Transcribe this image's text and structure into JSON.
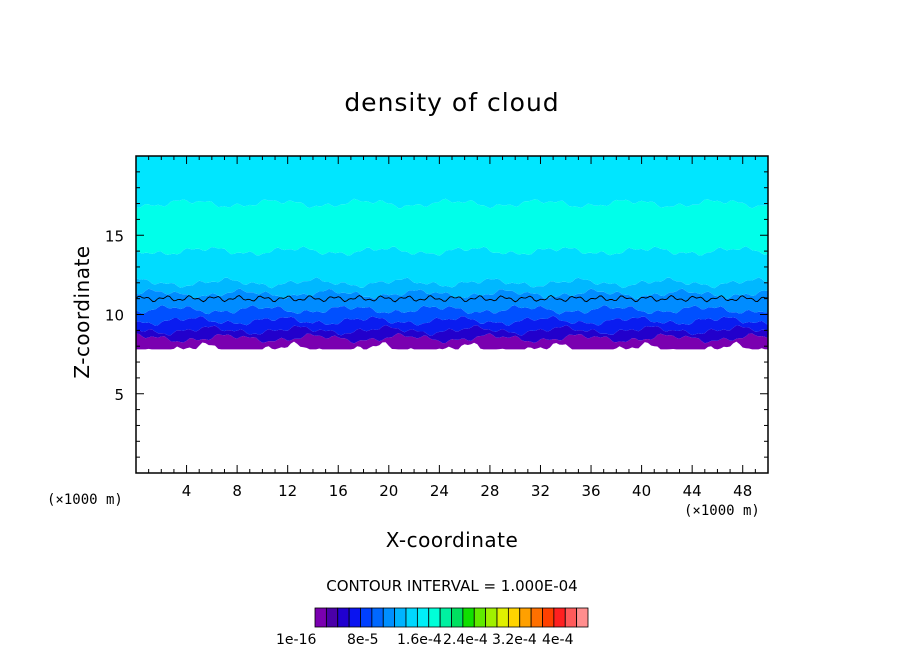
{
  "chart_data": {
    "type": "heatmap",
    "title": "density of cloud",
    "xlabel": "X-coordinate",
    "ylabel": "Z-coordinate",
    "x_unit_label": "(×1000 m)",
    "xlim": [
      0,
      50
    ],
    "ylim": [
      0,
      20
    ],
    "x_ticks": [
      4,
      8,
      12,
      16,
      20,
      24,
      28,
      32,
      36,
      40,
      44,
      48
    ],
    "y_ticks": [
      5,
      10,
      15
    ],
    "contour_interval_label": "CONTOUR INTERVAL = 1.000E-04",
    "cloud_base_z": 8,
    "cloud_top_z": 20,
    "contour_line_z": 11,
    "bands": [
      {
        "z0": 7.8,
        "z1": 8.5,
        "color": "#7a00b0"
      },
      {
        "z0": 8.5,
        "z1": 9.0,
        "color": "#2200cc"
      },
      {
        "z0": 9.0,
        "z1": 9.6,
        "color": "#0a1cf0"
      },
      {
        "z0": 9.6,
        "z1": 10.3,
        "color": "#0050ff"
      },
      {
        "z0": 10.3,
        "z1": 11.3,
        "color": "#008cff"
      },
      {
        "z0": 11.3,
        "z1": 12.0,
        "color": "#00b8ff"
      },
      {
        "z0": 12.0,
        "z1": 14.0,
        "color": "#00dcff"
      },
      {
        "z0": 14.0,
        "z1": 17.0,
        "color": "#00ffea"
      },
      {
        "z0": 17.0,
        "z1": 20.0,
        "color": "#00e6ff"
      }
    ],
    "colorbar": {
      "colors": [
        "#7a00b0",
        "#4a00a8",
        "#2000d0",
        "#0a14f0",
        "#0040ff",
        "#0068ff",
        "#0090ff",
        "#00b4ff",
        "#00d8ff",
        "#00f0f8",
        "#00ffd8",
        "#00f0a0",
        "#00e060",
        "#10e000",
        "#60ea00",
        "#a0f000",
        "#e0f000",
        "#ffd400",
        "#ffa000",
        "#ff7000",
        "#ff4000",
        "#ff2020",
        "#ff5a5a",
        "#ff8e8e"
      ],
      "labels": [
        "1e-16",
        "8e-5",
        "1.6e-4",
        "2.4e-4",
        "3.2e-4",
        "4e-4"
      ]
    }
  }
}
